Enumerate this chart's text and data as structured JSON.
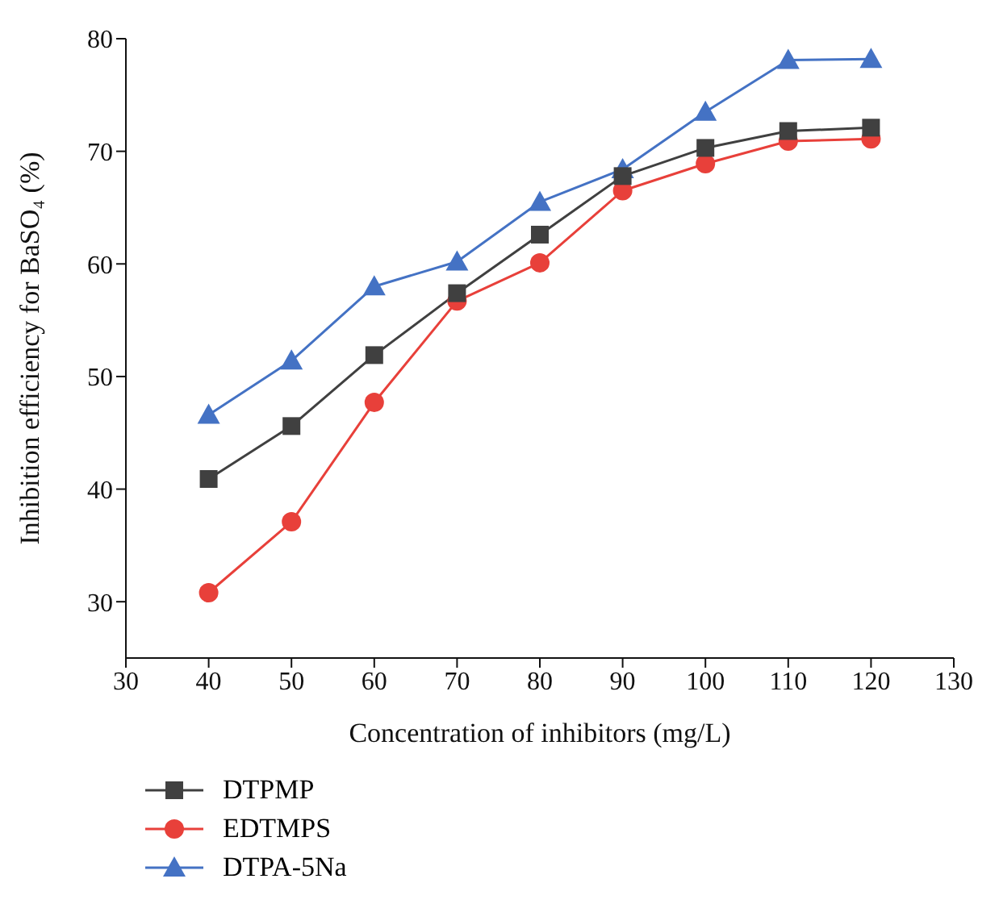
{
  "chart_data": {
    "type": "line",
    "xlabel": "Concentration of inhibitors (mg/L)",
    "ylabel": "Inhibition efficiency for BaSO₄ (%)",
    "x": [
      40,
      50,
      60,
      70,
      80,
      90,
      100,
      110,
      120
    ],
    "series": [
      {
        "name": "DTPMP",
        "color": "#404040",
        "marker": "square",
        "values": [
          40.9,
          45.6,
          51.9,
          57.4,
          62.6,
          67.8,
          70.3,
          71.8,
          72.1
        ]
      },
      {
        "name": "EDTMPS",
        "color": "#e8403a",
        "marker": "circle",
        "values": [
          30.8,
          37.1,
          47.7,
          56.7,
          60.1,
          66.5,
          68.9,
          70.9,
          71.1
        ]
      },
      {
        "name": "DTPA-5Na",
        "color": "#4472c4",
        "marker": "triangle",
        "values": [
          46.6,
          51.4,
          58.0,
          60.2,
          65.5,
          68.4,
          73.5,
          78.1,
          78.2
        ]
      }
    ],
    "xlim": [
      30,
      130
    ],
    "xticks": [
      30,
      40,
      50,
      60,
      70,
      80,
      90,
      100,
      110,
      120,
      130
    ],
    "ylim": [
      25,
      80
    ],
    "yticks": [
      30,
      40,
      50,
      60,
      70,
      80
    ],
    "grid": false,
    "legend": "bottom left",
    "line_style": "solid"
  }
}
